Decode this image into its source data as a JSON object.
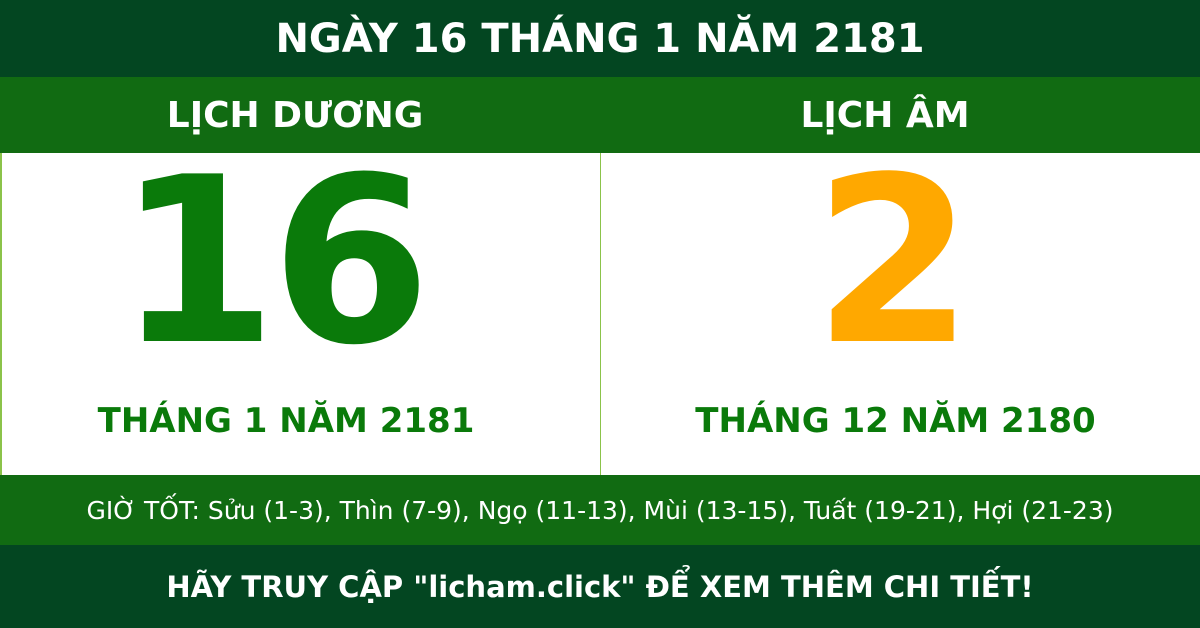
{
  "title": "NGÀY 16 THÁNG 1 NĂM 2181",
  "solar": {
    "label": "LỊCH DƯƠNG",
    "day": "16",
    "month_year": "THÁNG 1 NĂM 2181"
  },
  "lunar": {
    "label": "LỊCH ÂM",
    "day": "2",
    "month_year": "THÁNG 12 NĂM 2180"
  },
  "good_hours": "GIỜ TỐT: Sửu (1-3), Thìn (7-9), Ngọ (11-13), Mùi (13-15), Tuất (19-21), Hợi (21-23)",
  "footer": "HÃY TRUY CẬP \"licham.click\" ĐỂ XEM THÊM CHI TIẾT!",
  "colors": {
    "dark_green": "#034621",
    "green": "#116b12",
    "solar_day": "#0a7a0a",
    "lunar_day": "#ffa800"
  }
}
